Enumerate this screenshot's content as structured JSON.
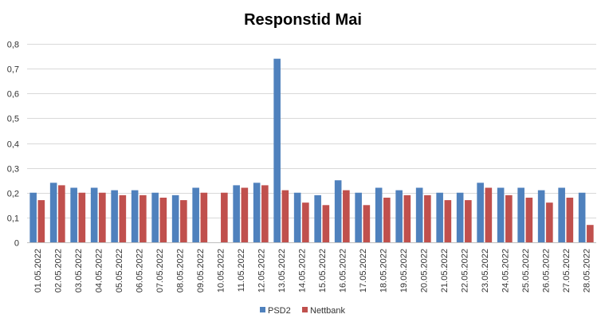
{
  "chart_data": {
    "type": "bar",
    "title": "Responstid Mai",
    "xlabel": "",
    "ylabel": "",
    "ylim": [
      0,
      0.8
    ],
    "yticks": [
      "0",
      "0,1",
      "0,2",
      "0,3",
      "0,4",
      "0,5",
      "0,6",
      "0,7",
      "0,8"
    ],
    "grid": true,
    "legend_position": "bottom",
    "categories": [
      "01.05.2022",
      "02.05.2022",
      "03.05.2022",
      "04.05.2022",
      "05.05.2022",
      "06.05.2022",
      "07.05.2022",
      "08.05.2022",
      "09.05.2022",
      "10.05.2022",
      "11.05.2022",
      "12.05.2022",
      "13.05.2022",
      "14.05.2022",
      "15.05.2022",
      "16.05.2022",
      "17.05.2022",
      "18.05.2022",
      "19.05.2022",
      "20.05.2022",
      "21.05.2022",
      "22.05.2022",
      "23.05.2022",
      "24.05.2022",
      "25.05.2022",
      "26.05.2022",
      "27.05.2022",
      "28.05.2022"
    ],
    "series": [
      {
        "name": "PSD2",
        "color": "#4f81bd",
        "values": [
          0.2,
          0.24,
          0.22,
          0.22,
          0.21,
          0.21,
          0.2,
          0.19,
          0.22,
          0,
          0.23,
          0.24,
          0.74,
          0.2,
          0.19,
          0.25,
          0.2,
          0.22,
          0.21,
          0.22,
          0.2,
          0.2,
          0.24,
          0.22,
          0.22,
          0.21,
          0.22,
          0.2
        ]
      },
      {
        "name": "Nettbank",
        "color": "#c0504d",
        "values": [
          0.17,
          0.23,
          0.2,
          0.2,
          0.19,
          0.19,
          0.18,
          0.17,
          0.2,
          0.2,
          0.22,
          0.23,
          0.21,
          0.16,
          0.15,
          0.21,
          0.15,
          0.18,
          0.19,
          0.19,
          0.17,
          0.17,
          0.22,
          0.19,
          0.18,
          0.16,
          0.18,
          0.07
        ]
      }
    ]
  }
}
